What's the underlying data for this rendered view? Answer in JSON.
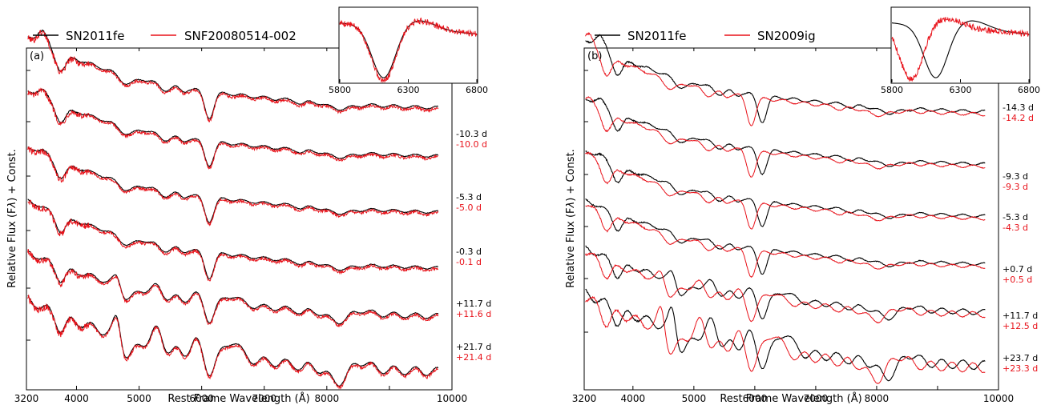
{
  "chart_data": [
    {
      "type": "line",
      "panel_label": "(a)",
      "xlabel": "Rest Frame Wavelength (Å)",
      "ylabel": "Relative Flux (F",
      "ylabel_sub": "λ",
      "ylabel_suffix": ") + Const.",
      "xlim": [
        3200,
        10000
      ],
      "xticks": [
        3200,
        4000,
        5000,
        6000,
        7000,
        8000,
        9000,
        10000
      ],
      "xtick_labels": [
        "3200",
        "4000",
        "5000",
        "6000",
        "7000",
        "8000",
        "",
        "10000"
      ],
      "legend": {
        "placement": "top-left",
        "entries": [
          "SN2011fe",
          "SNF20080514-002"
        ]
      },
      "colors": {
        "ref": "#000000",
        "cmp": "#e8121a"
      },
      "series": [
        {
          "name": "SN2011fe",
          "phases": [
            "",
            "-10.3 d",
            "-5.3 d",
            "-0.3 d",
            "+11.7 d",
            "+21.7 d"
          ]
        },
        {
          "name": "SNF20080514-002",
          "phases": [
            "",
            "-10.0 d",
            "-5.0 d",
            "-0.1 d",
            "+11.6 d",
            "+21.4 d"
          ]
        }
      ],
      "inset": {
        "xlim": [
          5800,
          6800
        ],
        "xtick_labels": [
          "5800",
          "6300",
          "6800"
        ]
      }
    },
    {
      "type": "line",
      "panel_label": "(b)",
      "xlabel": "Rest Frame Wavelength (Å)",
      "ylabel": "Relative Flux (F",
      "ylabel_sub": "λ",
      "ylabel_suffix": ") + Const.",
      "xlim": [
        3200,
        10000
      ],
      "xticks": [
        3200,
        4000,
        5000,
        6000,
        7000,
        8000,
        9000,
        10000
      ],
      "xtick_labels": [
        "3200",
        "4000",
        "5000",
        "6000",
        "7000",
        "8000",
        "",
        "10000"
      ],
      "legend": {
        "placement": "top-left",
        "entries": [
          "SN2011fe",
          "SN2009ig"
        ]
      },
      "colors": {
        "ref": "#000000",
        "cmp": "#e8121a"
      },
      "series": [
        {
          "name": "SN2011fe",
          "phases": [
            "-14.3 d",
            "-9.3 d",
            "-5.3 d",
            "+0.7 d",
            "+11.7 d",
            "+23.7 d"
          ]
        },
        {
          "name": "SN2009ig",
          "phases": [
            "-14.2 d",
            "-9.3 d",
            "-4.3 d",
            "+0.5 d",
            "+12.5 d",
            "+23.3 d"
          ]
        }
      ],
      "inset": {
        "xlim": [
          5800,
          6800
        ],
        "xtick_labels": [
          "5800",
          "6300",
          "6800"
        ]
      }
    }
  ]
}
